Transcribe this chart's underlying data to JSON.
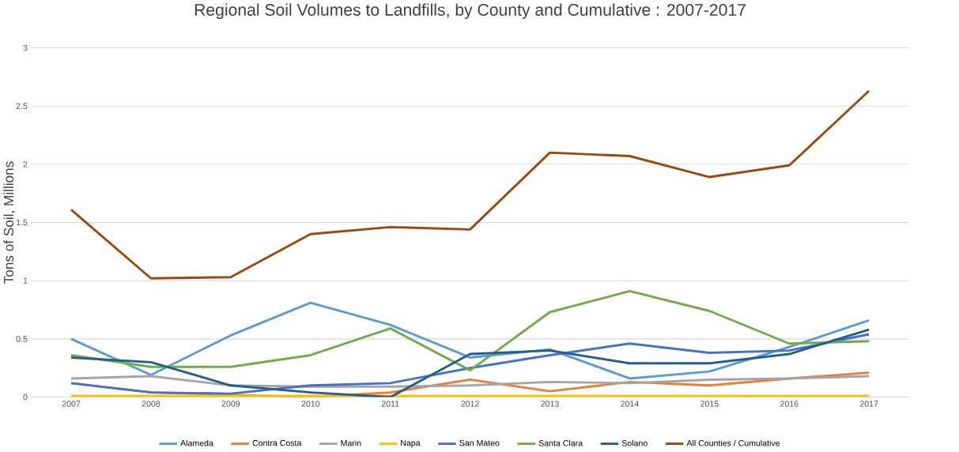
{
  "chart_data": {
    "type": "line",
    "title": "Regional Soil Volumes to Landfills, by County and Cumulative : 2007-2017",
    "ylabel": "Tons of Soil, Millions",
    "categories": [
      "2007",
      "2008",
      "2009",
      "2010",
      "2011",
      "2012",
      "2013",
      "2014",
      "2015",
      "2016",
      "2017"
    ],
    "ylim": [
      0,
      3
    ],
    "yticks": [
      0,
      0.5,
      1,
      1.5,
      2,
      2.5,
      3
    ],
    "grid": "y",
    "legend": "bottom",
    "marker": "none",
    "line_style": "solid",
    "series": [
      {
        "name": "Alameda",
        "color": "#5b9bd5",
        "values": [
          0.5,
          0.19,
          0.53,
          0.81,
          0.62,
          0.34,
          0.41,
          0.16,
          0.22,
          0.43,
          0.66
        ]
      },
      {
        "name": "Contra Costa",
        "color": "#ed7d31",
        "values": [
          0.12,
          0.04,
          0.02,
          0.0,
          0.04,
          0.15,
          0.05,
          0.13,
          0.1,
          0.16,
          0.21
        ]
      },
      {
        "name": "Marin",
        "color": "#a5a5a5",
        "values": [
          0.16,
          0.18,
          0.1,
          0.09,
          0.09,
          0.1,
          0.13,
          0.12,
          0.15,
          0.16,
          0.18
        ]
      },
      {
        "name": "Napa",
        "color": "#ffc000",
        "values": [
          0.01,
          0.01,
          0.01,
          0.01,
          0.01,
          0.01,
          0.01,
          0.01,
          0.01,
          0.01,
          0.01
        ]
      },
      {
        "name": "San Mateo",
        "color": "#4472c4",
        "values": [
          0.12,
          0.04,
          0.03,
          0.1,
          0.12,
          0.25,
          0.36,
          0.46,
          0.38,
          0.4,
          0.54
        ]
      },
      {
        "name": "Santa Clara",
        "color": "#70ad47",
        "values": [
          0.36,
          0.26,
          0.26,
          0.36,
          0.59,
          0.23,
          0.73,
          0.91,
          0.74,
          0.46,
          0.48
        ]
      },
      {
        "name": "Solano",
        "color": "#255e91",
        "values": [
          0.34,
          0.3,
          0.1,
          0.04,
          0.0,
          0.37,
          0.4,
          0.29,
          0.29,
          0.37,
          0.58
        ]
      },
      {
        "name": "All Counties / Cumulative",
        "color": "#9e480e",
        "values": [
          1.61,
          1.02,
          1.03,
          1.4,
          1.46,
          1.44,
          2.1,
          2.07,
          1.89,
          1.99,
          2.63
        ]
      }
    ]
  }
}
